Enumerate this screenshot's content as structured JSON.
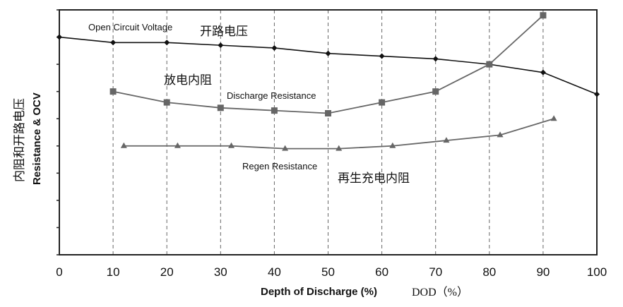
{
  "chart_data": {
    "type": "line",
    "xlabel": "Depth of Discharge (%)",
    "xlabel_cn": "DOD（%）",
    "ylabel": "Resistance & OCV",
    "ylabel_cn": "内阻和开路电压",
    "xlim": [
      0,
      100
    ],
    "xticks": [
      "0",
      "10",
      "20",
      "30",
      "40",
      "50",
      "60",
      "70",
      "80",
      "90",
      "100"
    ],
    "ylim": [
      0,
      9
    ],
    "y_tick_count": 10,
    "y_tick_labels_shown": false,
    "grid": "vertical dashed",
    "series": [
      {
        "name": "Open Circuit Voltage",
        "name_cn": "开路电压",
        "marker": "diamond",
        "color": "#111111",
        "x": [
          0,
          10,
          20,
          30,
          40,
          50,
          60,
          70,
          80,
          90,
          100
        ],
        "y": [
          8.0,
          7.8,
          7.8,
          7.7,
          7.6,
          7.4,
          7.3,
          7.2,
          7.0,
          6.7,
          5.9
        ]
      },
      {
        "name": "Discharge Resistance",
        "name_cn": "放电内阻",
        "marker": "square",
        "color": "#666666",
        "x": [
          10,
          20,
          30,
          40,
          50,
          60,
          70,
          80,
          90
        ],
        "y": [
          6.0,
          5.6,
          5.4,
          5.3,
          5.2,
          5.6,
          6.0,
          7.0,
          8.8
        ]
      },
      {
        "name": "Regen Resistance",
        "name_cn": "再生充电内阻",
        "marker": "triangle",
        "color": "#666666",
        "x": [
          12,
          22,
          32,
          42,
          52,
          62,
          72,
          82,
          92
        ],
        "y": [
          4.0,
          4.0,
          4.0,
          3.9,
          3.9,
          4.0,
          4.2,
          4.4,
          5.0
        ]
      }
    ]
  }
}
